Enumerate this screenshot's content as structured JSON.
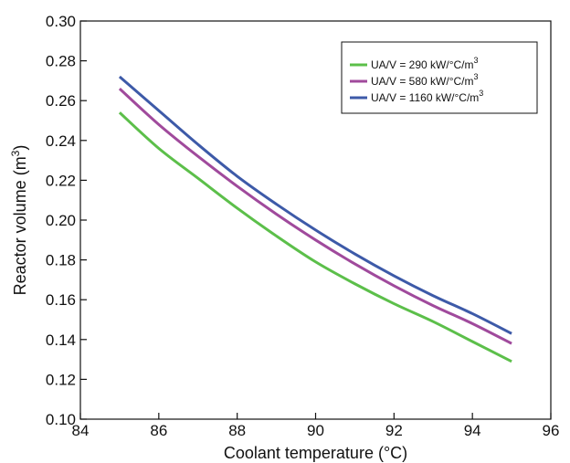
{
  "chart_data": {
    "type": "line",
    "title": "",
    "xlabel": "Coolant temperature (°C)",
    "ylabel": "Reactor volume (m",
    "ylabel_sup": "3",
    "ylabel_close": ")",
    "xlim": [
      84,
      96
    ],
    "ylim": [
      0.1,
      0.3
    ],
    "xticks": [
      84,
      86,
      88,
      90,
      92,
      94,
      96
    ],
    "xtick_labels": [
      "84",
      "86",
      "88",
      "90",
      "92",
      "94",
      "96"
    ],
    "yticks": [
      0.1,
      0.12,
      0.14,
      0.16,
      0.18,
      0.2,
      0.22,
      0.24,
      0.26,
      0.28,
      0.3
    ],
    "ytick_labels": [
      "0.10",
      "0.12",
      "0.14",
      "0.16",
      "0.18",
      "0.20",
      "0.22",
      "0.24",
      "0.26",
      "0.28",
      "0.30"
    ],
    "grid": false,
    "legend_position": "top-right",
    "x": [
      85,
      86,
      87,
      88,
      89,
      90,
      91,
      92,
      93,
      94,
      95
    ],
    "series": [
      {
        "name": "UA/V = 290 kW/°C/m",
        "name_sup": "3",
        "color": "#5cbf4a",
        "values": [
          0.254,
          0.236,
          0.221,
          0.206,
          0.192,
          0.179,
          0.168,
          0.158,
          0.149,
          0.139,
          0.129
        ]
      },
      {
        "name": "UA/V = 580 kW/°C/m",
        "name_sup": "3",
        "color": "#a04a9c",
        "values": [
          0.266,
          0.248,
          0.232,
          0.217,
          0.203,
          0.19,
          0.178,
          0.167,
          0.157,
          0.148,
          0.138
        ]
      },
      {
        "name": "UA/V = 1160 kW/°C/m",
        "name_sup": "3",
        "color": "#3d5aa8",
        "values": [
          0.272,
          0.255,
          0.238,
          0.222,
          0.208,
          0.195,
          0.183,
          0.172,
          0.162,
          0.153,
          0.143
        ]
      }
    ]
  }
}
